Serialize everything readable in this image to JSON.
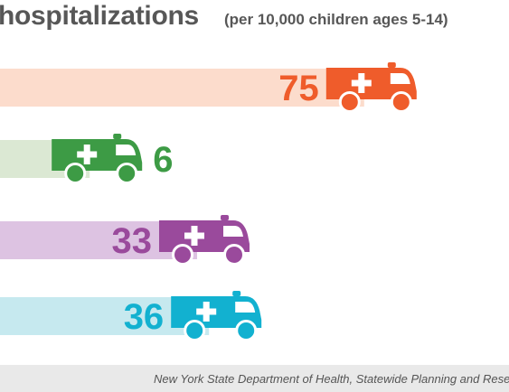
{
  "header": {
    "title": "hospitalizations",
    "subtitle": "(per 10,000 children ages 5-14)"
  },
  "chart_data": {
    "type": "bar",
    "orientation": "horizontal",
    "values": [
      75,
      6,
      33,
      36
    ],
    "value_labels": [
      "75",
      "6",
      "33",
      "36"
    ],
    "marker_icon": "ambulance-icon",
    "bar_colors": [
      "#fcdccc",
      "#dbe8d3",
      "#ddc3e2",
      "#c6e9ef"
    ],
    "icon_colors": [
      "#ef5c2b",
      "#3d9b45",
      "#9a4a9c",
      "#12b1d0"
    ]
  },
  "footer": {
    "source": "New York State Department of Health, Statewide Planning and Resear"
  }
}
